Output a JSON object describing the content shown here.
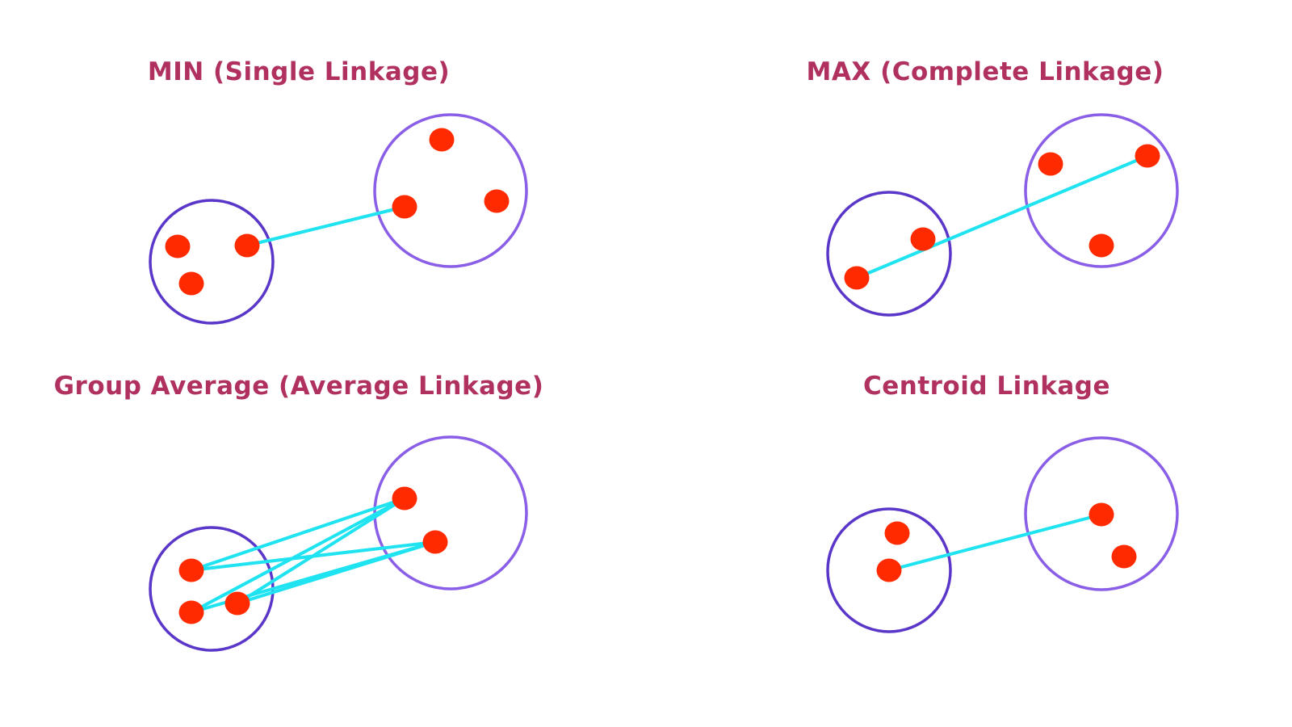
{
  "colors": {
    "background": "#ffffff",
    "title": "#b0305f",
    "cluster_left": "#5a36c9",
    "cluster_right": "#8a5ee6",
    "point": "#ff2a00",
    "link": "#1fe3f0"
  },
  "panels": [
    {
      "title": "MIN (Single Linkage)",
      "clusters": [
        {
          "points": [
            {
              "id": "a1"
            },
            {
              "id": "a2"
            },
            {
              "id": "a3"
            }
          ]
        },
        {
          "points": [
            {
              "id": "b1"
            },
            {
              "id": "b2"
            },
            {
              "id": "b3"
            }
          ]
        }
      ],
      "links": [
        [
          "a2",
          "b2"
        ]
      ]
    },
    {
      "title": "MAX (Complete Linkage)",
      "clusters": [
        {
          "points": [
            {
              "id": "a1"
            },
            {
              "id": "a2"
            }
          ]
        },
        {
          "points": [
            {
              "id": "b1"
            },
            {
              "id": "b2"
            },
            {
              "id": "b3"
            }
          ]
        }
      ],
      "links": [
        [
          "a2",
          "b2"
        ]
      ]
    },
    {
      "title": "Group Average (Average Linkage)",
      "clusters": [
        {
          "points": [
            {
              "id": "a1"
            },
            {
              "id": "a2"
            },
            {
              "id": "a3"
            }
          ]
        },
        {
          "points": [
            {
              "id": "b1"
            },
            {
              "id": "b2"
            }
          ]
        }
      ],
      "links": [
        [
          "a1",
          "b1"
        ],
        [
          "a1",
          "b2"
        ],
        [
          "a2",
          "b1"
        ],
        [
          "a2",
          "b2"
        ],
        [
          "a3",
          "b1"
        ],
        [
          "a3",
          "b2"
        ]
      ]
    },
    {
      "title": "Centroid Linkage",
      "clusters": [
        {
          "points": [
            {
              "id": "a1"
            },
            {
              "id": "a2"
            }
          ]
        },
        {
          "points": [
            {
              "id": "b1"
            },
            {
              "id": "b2"
            }
          ]
        }
      ],
      "links": [
        [
          "a2",
          "b1"
        ]
      ]
    }
  ]
}
